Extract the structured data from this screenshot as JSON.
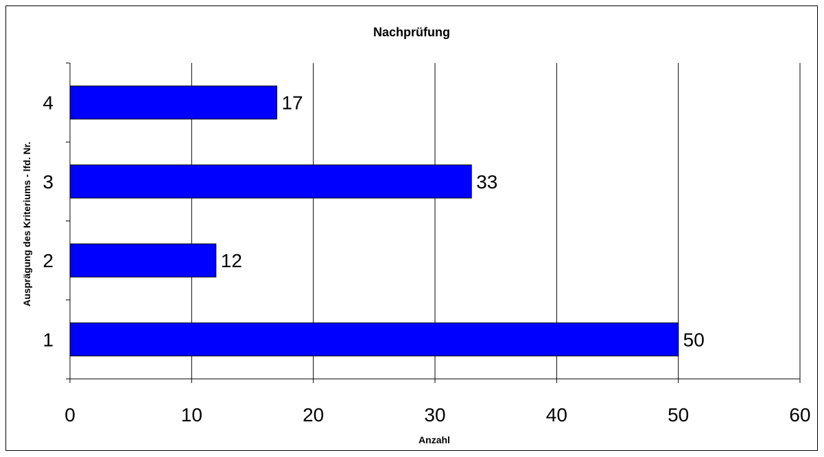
{
  "chart_data": {
    "type": "bar",
    "orientation": "horizontal",
    "title": "Nachprüfung",
    "xlabel": "Anzahl",
    "ylabel": "Ausprägung des Kriteriums - lfd. Nr.",
    "categories": [
      "1",
      "2",
      "3",
      "4"
    ],
    "values": [
      50,
      12,
      33,
      17
    ],
    "data_labels": [
      "50",
      "12",
      "33",
      "17"
    ],
    "xlim": [
      0,
      60
    ],
    "xticks": [
      0,
      10,
      20,
      30,
      40,
      50,
      60
    ],
    "xtick_labels": [
      "0",
      "10",
      "20",
      "30",
      "40",
      "50",
      "60"
    ],
    "grid": "vertical",
    "legend": "none",
    "bar_color": "#0000FF"
  }
}
